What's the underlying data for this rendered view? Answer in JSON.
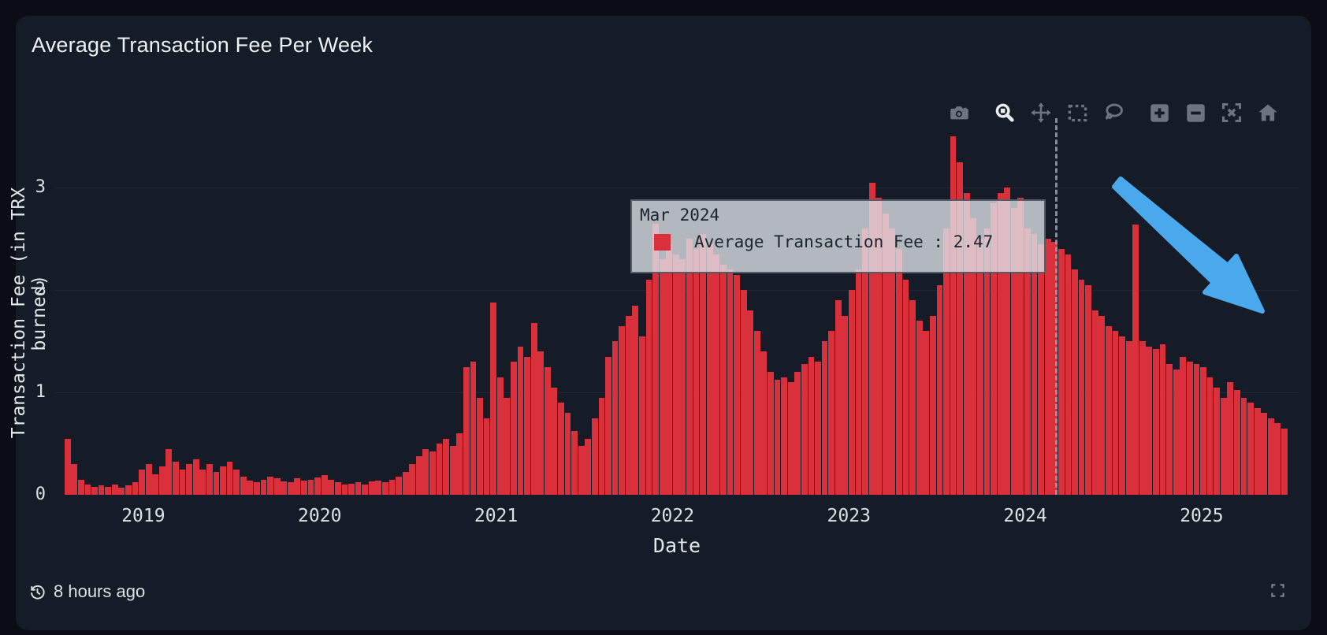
{
  "header": {
    "title": "Average Transaction Fee Per Week"
  },
  "modebar": {
    "tools": [
      "camera-icon",
      "zoom-icon",
      "pan-icon",
      "box-select-icon",
      "lasso-select-icon",
      "zoom-in-icon",
      "zoom-out-icon",
      "autoscale-icon",
      "reset-home-icon"
    ],
    "active_tool": "zoom-icon"
  },
  "tooltip": {
    "date": "Mar 2024",
    "series_label": "Average Transaction Fee : 2.47",
    "swatch_color": "#d9303c"
  },
  "footer": {
    "updated": "8 hours ago"
  },
  "colors": {
    "page_bg": "#0a0e14",
    "card_bg": "#151c27",
    "bar": "#d9303c",
    "arrow": "#4aa8ec",
    "tick_text": "#dbe0e4",
    "hover_line": "#97a1ab"
  },
  "chart_data": {
    "type": "bar",
    "title": "Average Transaction Fee Per Week",
    "xlabel": "Date",
    "ylabel": "Transaction Fee (in TRX burned)",
    "x_ticks": [
      2019,
      2020,
      2021,
      2022,
      2023,
      2024,
      2025
    ],
    "y_ticks": [
      0,
      1,
      2,
      3
    ],
    "xlim": [
      2018.5,
      2025.55
    ],
    "ylim": [
      0,
      3.75
    ],
    "grid": "horizontal-faint",
    "legend_position": "none",
    "series_name": "Average Transaction Fee",
    "x_start_year": 2018.57,
    "x_step_years": 0.03833,
    "hover_point": {
      "x_label": "Mar 2024",
      "x_year": 2024.17,
      "value": 2.47
    },
    "values": [
      0.55,
      0.3,
      0.15,
      0.1,
      0.08,
      0.09,
      0.08,
      0.1,
      0.07,
      0.09,
      0.12,
      0.25,
      0.3,
      0.2,
      0.28,
      0.45,
      0.32,
      0.25,
      0.3,
      0.35,
      0.25,
      0.3,
      0.22,
      0.28,
      0.32,
      0.25,
      0.18,
      0.14,
      0.12,
      0.15,
      0.18,
      0.16,
      0.13,
      0.12,
      0.16,
      0.14,
      0.15,
      0.17,
      0.19,
      0.15,
      0.12,
      0.1,
      0.11,
      0.12,
      0.1,
      0.13,
      0.14,
      0.12,
      0.15,
      0.18,
      0.22,
      0.3,
      0.38,
      0.45,
      0.42,
      0.5,
      0.55,
      0.48,
      0.6,
      1.25,
      1.3,
      0.95,
      0.75,
      1.88,
      1.15,
      0.95,
      1.3,
      1.45,
      1.35,
      1.68,
      1.4,
      1.25,
      1.05,
      0.9,
      0.8,
      0.62,
      0.48,
      0.55,
      0.75,
      0.95,
      1.35,
      1.5,
      1.65,
      1.75,
      1.85,
      1.55,
      2.1,
      2.65,
      2.3,
      2.45,
      2.35,
      2.3,
      2.5,
      2.4,
      2.55,
      2.45,
      2.35,
      2.25,
      2.2,
      2.15,
      2.0,
      1.8,
      1.6,
      1.4,
      1.2,
      1.12,
      1.15,
      1.1,
      1.2,
      1.28,
      1.35,
      1.3,
      1.5,
      1.6,
      1.9,
      1.75,
      2.0,
      2.2,
      2.6,
      3.05,
      2.9,
      2.75,
      2.6,
      2.4,
      2.1,
      1.9,
      1.7,
      1.6,
      1.75,
      2.05,
      2.6,
      3.5,
      3.25,
      2.95,
      2.7,
      2.5,
      2.6,
      2.85,
      2.95,
      3.0,
      2.8,
      2.9,
      2.6,
      2.55,
      2.45,
      2.5,
      2.47,
      2.4,
      2.35,
      2.2,
      2.1,
      2.05,
      1.8,
      1.75,
      1.65,
      1.6,
      1.55,
      1.5,
      2.64,
      1.5,
      1.45,
      1.42,
      1.47,
      1.28,
      1.22,
      1.35,
      1.3,
      1.28,
      1.25,
      1.15,
      1.05,
      0.95,
      1.1,
      1.02,
      0.95,
      0.9,
      0.85,
      0.8,
      0.75,
      0.7,
      0.65
    ],
    "annotation": {
      "type": "arrow",
      "direction": "down-right",
      "color": "#4aa8ec"
    }
  }
}
